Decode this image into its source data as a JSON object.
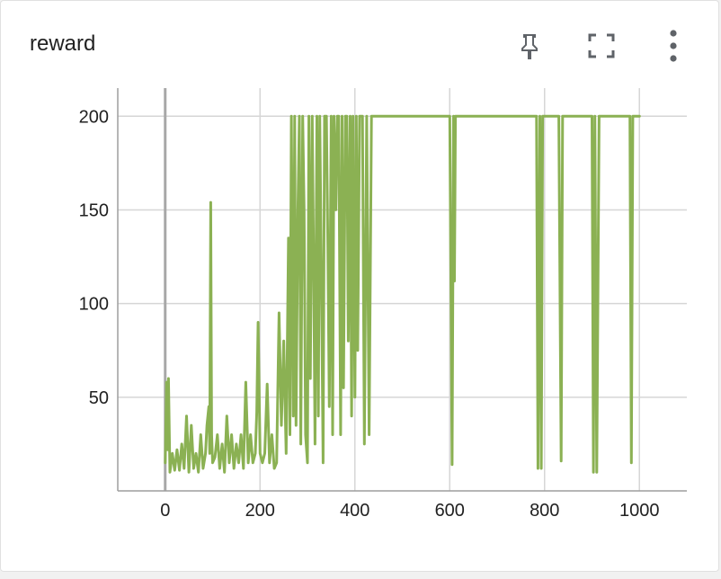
{
  "card": {
    "title": "reward",
    "icons": [
      "pin-icon",
      "fullscreen-icon",
      "more-vert-icon"
    ]
  },
  "chart_data": {
    "type": "line",
    "title": "reward",
    "xlabel": "",
    "ylabel": "",
    "xlim": [
      -100,
      1100
    ],
    "ylim": [
      0,
      215
    ],
    "grid": true,
    "line_color": "#8bb153",
    "x_ticks": [
      0,
      200,
      400,
      600,
      800,
      1000
    ],
    "x_tick_labels": [
      "0",
      "200",
      "400",
      "600",
      "800",
      "1000"
    ],
    "y_ticks": [
      50,
      100,
      150,
      200
    ],
    "y_tick_labels": [
      "50",
      "100",
      "150",
      "200"
    ],
    "series": [
      {
        "x": [
          0,
          3,
          5,
          7,
          10,
          15,
          20,
          25,
          30,
          35,
          40,
          45,
          50,
          55,
          60,
          65,
          70,
          75,
          80,
          85,
          88,
          92,
          94,
          96,
          98,
          100,
          105,
          110,
          115,
          120,
          125,
          130,
          135,
          140,
          145,
          150,
          155,
          160,
          165,
          170,
          175,
          180,
          185,
          190,
          193,
          196,
          200,
          205,
          210,
          215,
          220,
          225,
          230,
          235,
          240,
          245,
          250,
          255,
          260,
          263,
          266,
          270,
          273,
          276,
          280,
          283,
          286,
          290,
          293,
          296,
          300,
          303,
          306,
          310,
          313,
          316,
          320,
          323,
          326,
          330,
          333,
          336,
          340,
          343,
          346,
          350,
          353,
          356,
          360,
          363,
          366,
          370,
          373,
          376,
          380,
          383,
          386,
          390,
          393,
          396,
          400,
          403,
          406,
          410,
          413,
          416,
          420,
          425,
          430,
          435,
          440,
          500,
          600,
          605,
          608,
          610,
          612,
          615,
          700,
          780,
          783,
          786,
          790,
          793,
          796,
          800,
          830,
          835,
          838,
          840,
          845,
          900,
          903,
          906,
          910,
          915,
          980,
          983,
          986,
          990,
          1000
        ],
        "y": [
          15,
          58,
          22,
          60,
          10,
          20,
          11,
          22,
          11,
          25,
          12,
          40,
          10,
          35,
          12,
          20,
          10,
          30,
          12,
          20,
          35,
          45,
          20,
          154,
          30,
          15,
          18,
          30,
          12,
          25,
          10,
          40,
          15,
          30,
          12,
          25,
          15,
          30,
          12,
          58,
          15,
          30,
          15,
          20,
          42,
          90,
          20,
          15,
          20,
          57,
          15,
          30,
          12,
          15,
          95,
          35,
          80,
          20,
          135,
          30,
          200,
          40,
          200,
          35,
          150,
          200,
          25,
          200,
          150,
          30,
          15,
          200,
          60,
          200,
          120,
          25,
          200,
          40,
          200,
          100,
          15,
          200,
          200,
          130,
          45,
          200,
          30,
          200,
          150,
          200,
          200,
          30,
          200,
          55,
          200,
          200,
          80,
          200,
          40,
          200,
          50,
          200,
          75,
          200,
          200,
          200,
          25,
          200,
          30,
          200,
          200,
          200,
          200,
          14,
          200,
          112,
          200,
          200,
          200,
          200,
          200,
          12,
          200,
          12,
          200,
          200,
          200,
          16,
          200,
          200,
          200,
          200,
          10,
          200,
          10,
          200,
          200,
          15,
          200,
          200,
          200
        ]
      }
    ]
  }
}
